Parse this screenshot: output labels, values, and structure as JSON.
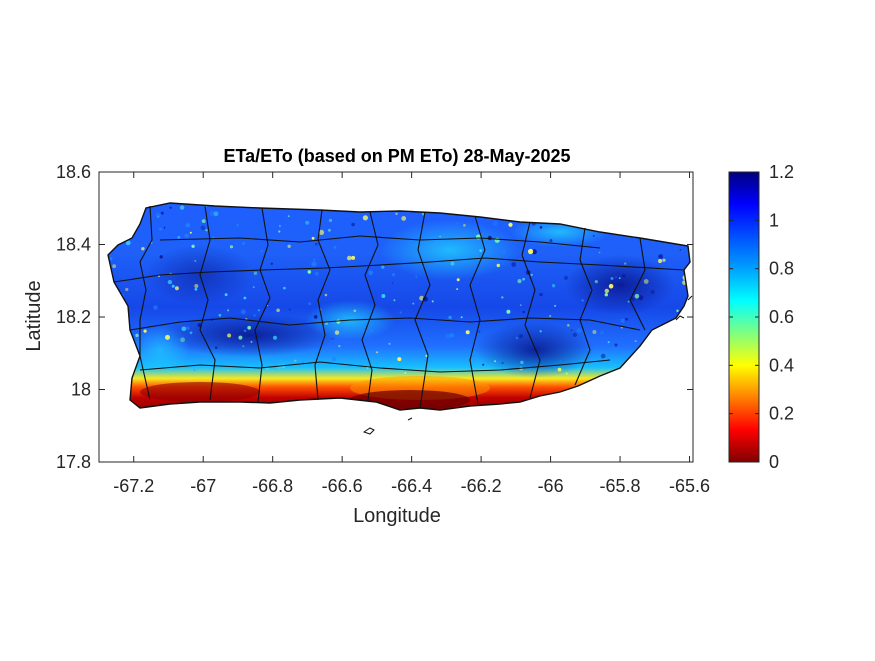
{
  "figure": {
    "title": "ETa/ETo (based on PM ETo) 28-May-2025",
    "xlabel": "Longitude",
    "ylabel": "Latitude"
  },
  "map": {
    "region": "Puerto Rico",
    "x_ticks": [
      "-67.2",
      "-67",
      "-66.8",
      "-66.6",
      "-66.4",
      "-66.2",
      "-66",
      "-65.8",
      "-65.6"
    ],
    "x_tick_values": [
      -67.2,
      -67.0,
      -66.8,
      -66.6,
      -66.4,
      -66.2,
      -66.0,
      -65.8,
      -65.6
    ],
    "y_ticks": [
      "18.6",
      "18.4",
      "18.2",
      "18",
      "17.8"
    ],
    "y_tick_values": [
      18.6,
      18.4,
      18.2,
      18.0,
      17.8
    ],
    "xlim": [
      -67.3,
      -65.59
    ],
    "ylim": [
      17.8,
      18.6
    ]
  },
  "colorbar": {
    "ticks": [
      "1.2",
      "1",
      "0.8",
      "0.6",
      "0.4",
      "0.2",
      "0"
    ],
    "tick_values": [
      1.2,
      1.0,
      0.8,
      0.6,
      0.4,
      0.2,
      0.0
    ],
    "range": [
      0,
      1.2
    ],
    "colormap": "jet",
    "stops": [
      "#800000",
      "#ff0000",
      "#ff8000",
      "#ffff00",
      "#80ff80",
      "#00ffff",
      "#0080ff",
      "#0000ff",
      "#000080"
    ]
  }
}
